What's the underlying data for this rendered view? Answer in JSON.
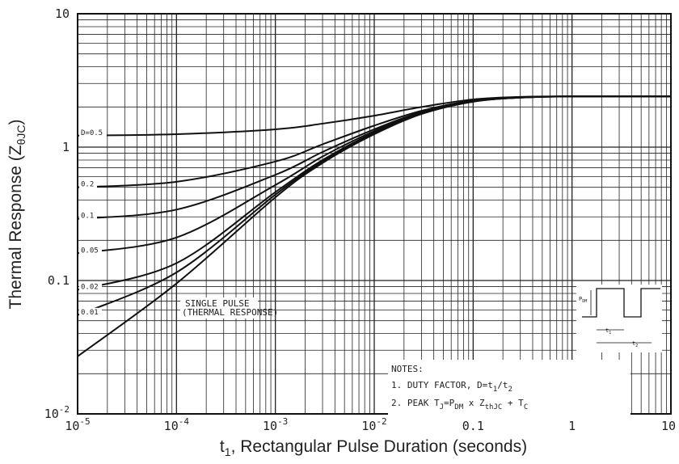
{
  "chart_data": {
    "type": "line",
    "xlabel": "t",
    "xlabel_sub": "1",
    "xlabel_rest": ", Rectangular Pulse Duration (seconds)",
    "ylabel": "Thermal Response (Z",
    "ylabel_sub": "θJC",
    "ylabel_end": ")",
    "x_scale": "log",
    "y_scale": "log",
    "xlim": [
      1e-05,
      10
    ],
    "ylim": [
      0.01,
      10
    ],
    "grid": true,
    "x_ticks": [
      {
        "value": 1e-05,
        "base": "10",
        "exp": "-5"
      },
      {
        "value": 0.0001,
        "base": "10",
        "exp": "-4"
      },
      {
        "value": 0.001,
        "base": "10",
        "exp": "-3"
      },
      {
        "value": 0.01,
        "base": "10",
        "exp": "-2"
      },
      {
        "value": 0.1,
        "label": "0.1"
      },
      {
        "value": 1,
        "label": "1"
      },
      {
        "value": 10,
        "label": "10"
      }
    ],
    "y_ticks": [
      {
        "value": 0.01,
        "base": "10",
        "exp": "-2"
      },
      {
        "value": 0.1,
        "label": "0.1"
      },
      {
        "value": 1,
        "label": "1"
      },
      {
        "value": 10,
        "label": "10"
      }
    ],
    "series": [
      {
        "name": "D=0.5",
        "x": [
          1e-05,
          0.0001,
          0.001,
          0.003,
          0.01,
          0.03,
          0.1,
          0.3,
          1,
          10
        ],
        "y": [
          1.22,
          1.25,
          1.36,
          1.5,
          1.72,
          2.0,
          2.28,
          2.38,
          2.4,
          2.4
        ]
      },
      {
        "name": "0.2",
        "x": [
          1e-05,
          0.0001,
          0.001,
          0.003,
          0.01,
          0.03,
          0.1,
          0.3,
          1,
          10
        ],
        "y": [
          0.5,
          0.55,
          0.78,
          1.05,
          1.45,
          1.87,
          2.24,
          2.37,
          2.4,
          2.4
        ]
      },
      {
        "name": "0.1",
        "x": [
          1e-05,
          0.0001,
          0.001,
          0.003,
          0.01,
          0.03,
          0.1,
          0.3,
          1,
          10
        ],
        "y": [
          0.29,
          0.34,
          0.62,
          0.92,
          1.36,
          1.83,
          2.22,
          2.36,
          2.4,
          2.4
        ]
      },
      {
        "name": "0.05",
        "x": [
          1e-05,
          0.0001,
          0.001,
          0.003,
          0.01,
          0.03,
          0.1,
          0.3,
          1,
          10
        ],
        "y": [
          0.16,
          0.21,
          0.52,
          0.85,
          1.32,
          1.81,
          2.21,
          2.36,
          2.4,
          2.4
        ]
      },
      {
        "name": "0.02",
        "x": [
          1e-05,
          0.0001,
          0.001,
          0.003,
          0.01,
          0.03,
          0.1,
          0.3,
          1,
          10
        ],
        "y": [
          0.085,
          0.135,
          0.46,
          0.8,
          1.29,
          1.79,
          2.2,
          2.35,
          2.4,
          2.4
        ]
      },
      {
        "name": "0.01",
        "x": [
          1e-05,
          0.0001,
          0.001,
          0.003,
          0.01,
          0.03,
          0.1,
          0.3,
          1,
          10
        ],
        "y": [
          0.055,
          0.115,
          0.44,
          0.78,
          1.27,
          1.78,
          2.2,
          2.35,
          2.4,
          2.4
        ]
      },
      {
        "name": "SINGLE PULSE (THERMAL RESPONSE)",
        "x": [
          1e-05,
          0.0001,
          0.001,
          0.003,
          0.01,
          0.03,
          0.1,
          0.3,
          1,
          10
        ],
        "y": [
          0.027,
          0.095,
          0.42,
          0.76,
          1.25,
          1.77,
          2.19,
          2.35,
          2.4,
          2.4
        ]
      }
    ],
    "curve_labels": [
      "D=0.5",
      "0.2",
      "0.1",
      "0.05",
      "0.02",
      "0.01"
    ],
    "single_pulse_label": [
      "SINGLE PULSE",
      "(THERMAL RESPONSE)"
    ],
    "notes": {
      "title": "NOTES:",
      "line1_prefix": "1. DUTY FACTOR, D=t",
      "line1_sub1": "1",
      "line1_mid": "/t",
      "line1_sub2": "2",
      "line2_prefix": "2. PEAK T",
      "line2_sub1": "J",
      "line2_mid1": "=P",
      "line2_sub2": "DM",
      "line2_mid2": " x Z",
      "line2_sub3": "thJC",
      "line2_end": " + T",
      "line2_sub4": "C"
    },
    "inset": {
      "pdm": "P",
      "pdm_sub": "DM",
      "t1": "t",
      "t1_sub": "1",
      "t2": "t",
      "t2_sub": "2"
    }
  }
}
